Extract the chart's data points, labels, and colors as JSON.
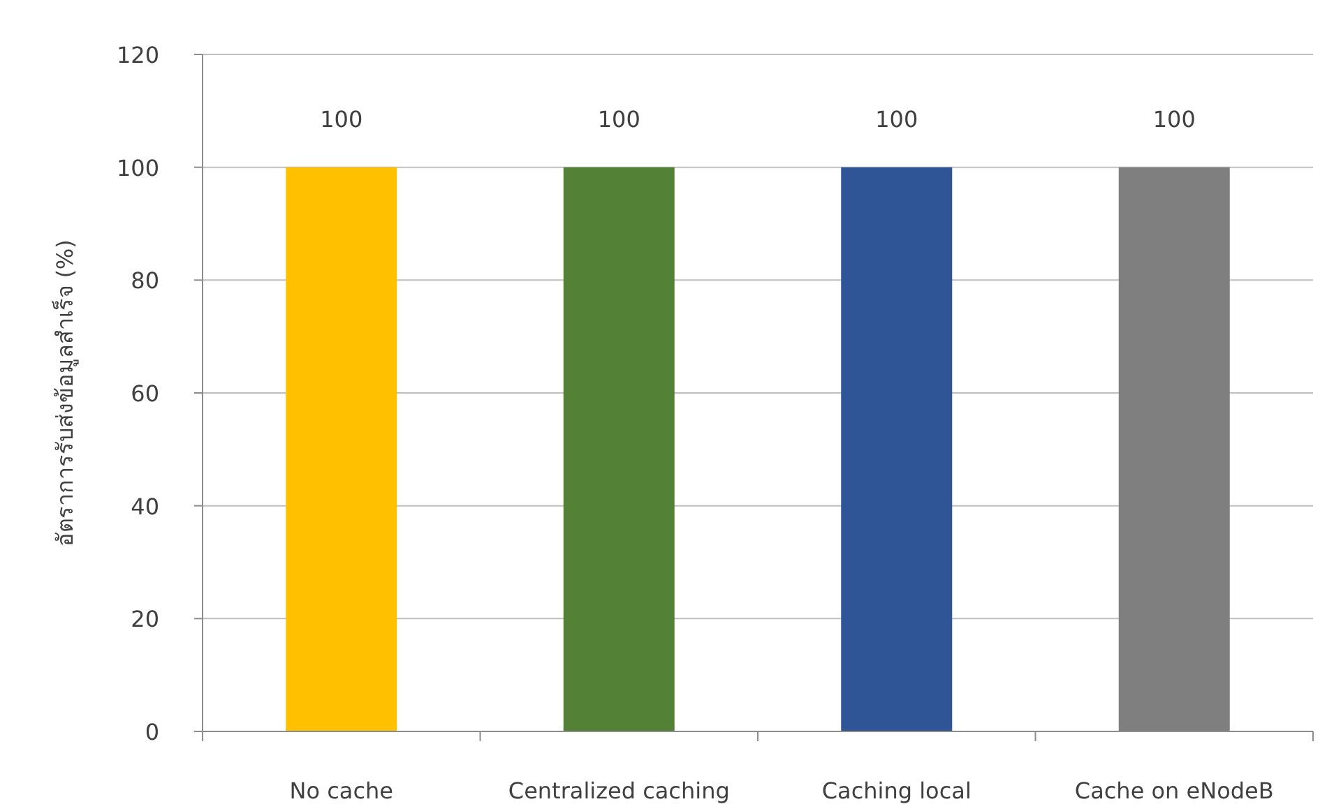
{
  "chart_data": {
    "type": "bar",
    "ylabel": "อัตราการรับส่งข้อมูลสำเร็จ (%)",
    "categories": [
      "No cache",
      "Centralized caching",
      "Caching local",
      "Cache on eNodeB"
    ],
    "values": [
      100,
      100,
      100,
      100
    ],
    "colors": [
      "#ffc000",
      "#538135",
      "#2f5597",
      "#7f7f7f"
    ],
    "ylim": [
      0,
      120
    ],
    "yticks": [
      0,
      20,
      40,
      60,
      80,
      100,
      120
    ],
    "grid": "y",
    "data_labels": true
  }
}
